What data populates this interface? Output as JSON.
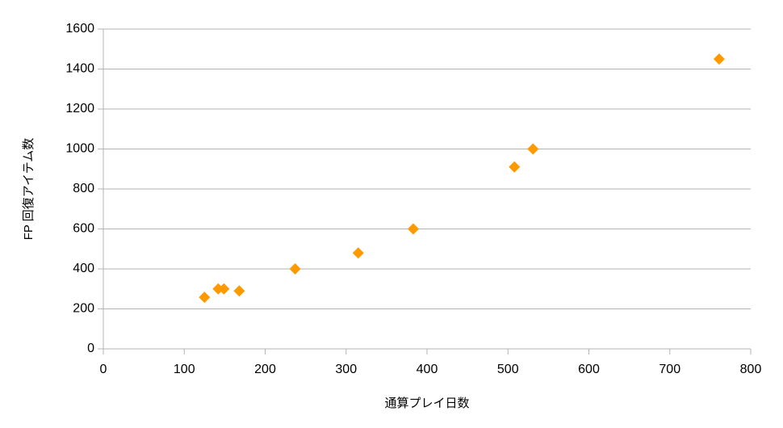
{
  "chart_data": {
    "type": "scatter",
    "x_label": "通算プレイ日数",
    "y_label": "FP 回復アイテム数",
    "color": "#ff9900",
    "grid": true,
    "x": [
      125,
      142,
      149,
      168,
      237,
      315,
      383,
      508,
      531,
      761
    ],
    "values": [
      258,
      300,
      300,
      290,
      400,
      480,
      600,
      910,
      1000,
      1450
    ],
    "xlim": [
      0,
      800
    ],
    "xticks": [
      0,
      100,
      200,
      300,
      400,
      500,
      600,
      700,
      800
    ],
    "ylim": [
      0,
      1600
    ],
    "yticks": [
      0,
      200,
      400,
      600,
      800,
      1000,
      1200,
      1400,
      1600
    ]
  }
}
